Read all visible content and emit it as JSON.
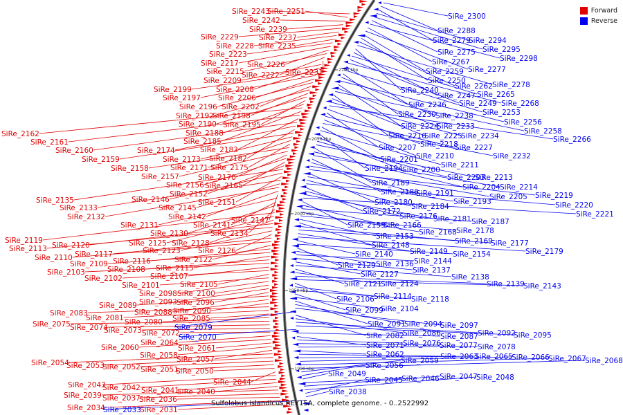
{
  "caption": "Sulfolobus islandicus REY15A, complete genome. - 0..2522992",
  "colors": {
    "forward": "#e00000",
    "reverse": "#0000ee"
  },
  "legend": [
    {
      "label": "Forward",
      "strand": "forward"
    },
    {
      "label": "Reverse",
      "strand": "reverse"
    }
  ],
  "ticks": [
    {
      "label": "2100 kbp",
      "y": 101
    },
    {
      "label": "2050 kbp",
      "y": 201
    },
    {
      "label": "2000 kbp",
      "y": 309
    },
    {
      "label": "1950 kbp",
      "y": 420
    },
    {
      "label": "1900 kbp",
      "y": 533
    }
  ],
  "forward_genes": [
    "SiRe_2243",
    "SiRe_2251",
    "SiRe_2242",
    "SiRe_2239",
    "SiRe_2229",
    "SiRe_2237",
    "SiRe_2228",
    "SiRe_2235",
    "SiRe_2223",
    "SiRe_2217",
    "SiRe_2226",
    "SiRe_2215",
    "SiRe_2222",
    "SiRe_2231",
    "SiRe_2209",
    "SiRe_2208",
    "SiRe_2199",
    "SiRe_2197",
    "SiRe_2206",
    "SiRe_2196",
    "SiRe_2202",
    "SiRe_2192",
    "SiRe_2198",
    "SiRe_2190",
    "SiRe_2195",
    "SiRe_2188",
    "SiRe_2162",
    "SiRe_2185",
    "SiRe_2161",
    "SiRe_2183",
    "SiRe_2160",
    "SiRe_2174",
    "SiRe_2182",
    "SiRe_2159",
    "SiRe_2173",
    "SiRe_2171",
    "SiRe_2175",
    "SiRe_2158",
    "SiRe_2157",
    "SiRe_2170",
    "SiRe_2156",
    "SiRe_2165",
    "SiRe_2152",
    "SiRe_2135",
    "SiRe_2146",
    "SiRe_2151",
    "SiRe_2133",
    "SiRe_2145",
    "SiRe_2132",
    "SiRe_2142",
    "SiRe_2147",
    "SiRe_2131",
    "SiRe_2141",
    "SiRe_2130",
    "SiRe_2134",
    "SiRe_2119",
    "SiRe_2125",
    "SiRe_2128",
    "SiRe_2120",
    "SiRe_2113",
    "SiRe_2123",
    "SiRe_2126",
    "SiRe_2117",
    "SiRe_2110",
    "SiRe_2122",
    "SiRe_2116",
    "SiRe_2109",
    "SiRe_2115",
    "SiRe_2108",
    "SiRe_2103",
    "SiRe_2107",
    "SiRe_2102",
    "SiRe_2105",
    "SiRe_2101",
    "SiRe_2098",
    "SiRe_2100",
    "SiRe_2093",
    "SiRe_2096",
    "SiRe_2089",
    "SiRe_2088",
    "SiRe_2090",
    "SiRe_2083",
    "SiRe_2081",
    "SiRe_2085",
    "SiRe_2080",
    "SiRe_2075",
    "SiRe_2074",
    "SiRe_2073",
    "SiRe_2072",
    "SiRe_2064",
    "SiRe_2060",
    "SiRe_2061",
    "SiRe_2058",
    "SiRe_2057",
    "SiRe_2054",
    "SiRe_2053",
    "SiRe_2052",
    "SiRe_2051",
    "SiRe_2050",
    "SiRe_2044",
    "SiRe_2043",
    "SiRe_2042",
    "SiRe_2041",
    "SiRe_2040",
    "SiRe_2039",
    "SiRe_2037",
    "SiRe_2036",
    "SiRe_2034",
    "SiRe_2031"
  ],
  "reverse_genes": [
    "SiRe_2300",
    "SiRe_2288",
    "SiRe_2279",
    "SiRe_2294",
    "SiRe_2295",
    "SiRe_2275",
    "SiRe_2298",
    "SiRe_2267",
    "SiRe_2277",
    "SiRe_2259",
    "SiRe_2250",
    "SiRe_2262",
    "SiRe_2278",
    "SiRe_2240",
    "SiRe_2247",
    "SiRe_2265",
    "SiRe_2249",
    "SiRe_2268",
    "SiRe_2236",
    "SiRe_2253",
    "SiRe_2230",
    "SiRe_2238",
    "SiRe_2256",
    "SiRe_2224",
    "SiRe_2233",
    "SiRe_2258",
    "SiRe_2216",
    "SiRe_2225",
    "SiRe_2234",
    "SiRe_2266",
    "SiRe_2218",
    "SiRe_2207",
    "SiRe_2227",
    "SiRe_2210",
    "SiRe_2232",
    "SiRe_2201",
    "SiRe_2211",
    "SiRe_2194",
    "SiRe_2200",
    "SiRe_2203",
    "SiRe_2213",
    "SiRe_2189",
    "SiRe_2204",
    "SiRe_2214",
    "SiRe_2186",
    "SiRe_2191",
    "SiRe_2205",
    "SiRe_2219",
    "SiRe_2180",
    "SiRe_2193",
    "SiRe_2184",
    "SiRe_2220",
    "SiRe_2172",
    "SiRe_2176",
    "SiRe_2181",
    "SiRe_2221",
    "SiRe_2155",
    "SiRe_2166",
    "SiRe_2187",
    "SiRe_2168",
    "SiRe_2178",
    "SiRe_2153",
    "SiRe_2148",
    "SiRe_2169",
    "SiRe_2177",
    "SiRe_2149",
    "SiRe_2179",
    "SiRe_2140",
    "SiRe_2154",
    "SiRe_2129",
    "SiRe_2136",
    "SiRe_2144",
    "SiRe_2137",
    "SiRe_2127",
    "SiRe_2138",
    "SiRe_2121",
    "SiRe_2124",
    "SiRe_2139",
    "SiRe_2143",
    "SiRe_2106",
    "SiRe_2114",
    "SiRe_2118",
    "SiRe_2099",
    "SiRe_2104",
    "SiRe_2091",
    "SiRe_2094",
    "SiRe_2097",
    "SiRe_2079",
    "SiRe_2082",
    "SiRe_2086",
    "SiRe_2092",
    "SiRe_2095",
    "SiRe_2070",
    "SiRe_2087",
    "SiRe_2071",
    "SiRe_2076",
    "SiRe_2077",
    "SiRe_2078",
    "SiRe_2062",
    "SiRe_2063",
    "SiRe_2065",
    "SiRe_2066",
    "SiRe_2067",
    "SiRe_2068",
    "SiRe_2059",
    "SiRe_2056",
    "SiRe_2049",
    "SiRe_2046",
    "SiRe_2047",
    "SiRe_2048",
    "SiRe_2045",
    "SiRe_2038",
    "SiRe_2033"
  ]
}
